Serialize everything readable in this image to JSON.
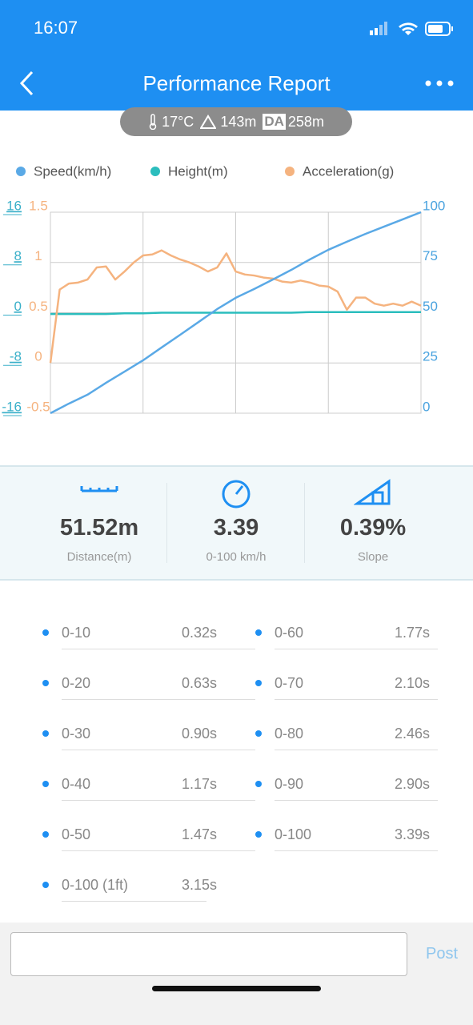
{
  "status_bar": {
    "time": "16:07"
  },
  "header": {
    "title": "Performance Report"
  },
  "conditions": {
    "temperature": "17°C",
    "altitude": "143m",
    "da_label": "DA",
    "density_altitude": "258m"
  },
  "chart_data": {
    "type": "line",
    "series": [
      {
        "name": "Speed(km/h)",
        "color": "#5aa9e6",
        "axis": "y3",
        "values": [
          0,
          4.8,
          9.2,
          15.1,
          20.7,
          26.3,
          32.7,
          39.0,
          45.4,
          51.8,
          57.4,
          61.8,
          66.5,
          71.3,
          76.5,
          81.3,
          85.3,
          89.2,
          92.8,
          96.4,
          100
        ]
      },
      {
        "name": "Height(m)",
        "color": "#2bbdbd",
        "axis": "y",
        "values": [
          -0.2,
          -0.2,
          -0.2,
          -0.2,
          -0.1,
          -0.1,
          0,
          0,
          0,
          0,
          0,
          0,
          0,
          0,
          0.1,
          0.1,
          0.1,
          0.1,
          0.1,
          0.1,
          0.1
        ]
      },
      {
        "name": "Acceleration(g)",
        "color": "#f5b37f",
        "axis": "y2",
        "values": [
          0.0,
          0.73,
          0.79,
          0.8,
          0.83,
          0.95,
          0.96,
          0.83,
          0.91,
          1.0,
          1.07,
          1.08,
          1.12,
          1.07,
          1.03,
          1.0,
          0.96,
          0.91,
          0.95,
          1.09,
          0.91,
          0.88,
          0.87,
          0.85,
          0.84,
          0.81,
          0.8,
          0.82,
          0.8,
          0.77,
          0.76,
          0.71,
          0.53,
          0.65,
          0.65,
          0.59,
          0.57,
          0.59,
          0.57,
          0.61,
          0.57
        ]
      }
    ],
    "ylim": [
      -16,
      16
    ],
    "yticks": [
      16,
      8,
      0,
      -8,
      -16
    ],
    "y_color": "#3bb0c9",
    "y2lim": [
      -0.5,
      1.5
    ],
    "y2ticks": [
      1.5,
      1,
      0.5,
      0,
      -0.5
    ],
    "y2_color": "#f5b37f",
    "y3lim": [
      0,
      100
    ],
    "y3ticks": [
      100,
      75,
      50,
      25,
      0
    ],
    "y3_color": "#4aa3df",
    "grid": true
  },
  "stats": [
    {
      "value": "51.52m",
      "label": "Distance(m)"
    },
    {
      "value": "3.39",
      "label": "0-100 km/h"
    },
    {
      "value": "0.39%",
      "label": "Slope"
    }
  ],
  "splits_left": [
    {
      "range": "0-10",
      "time": "0.32s"
    },
    {
      "range": "0-20",
      "time": "0.63s"
    },
    {
      "range": "0-30",
      "time": "0.90s"
    },
    {
      "range": "0-40",
      "time": "1.17s"
    },
    {
      "range": "0-50",
      "time": "1.47s"
    },
    {
      "range": "0-100 (1ft)",
      "time": "3.15s"
    }
  ],
  "splits_right": [
    {
      "range": "0-60",
      "time": "1.77s"
    },
    {
      "range": "0-70",
      "time": "2.10s"
    },
    {
      "range": "0-80",
      "time": "2.46s"
    },
    {
      "range": "0-90",
      "time": "2.90s"
    },
    {
      "range": "0-100",
      "time": "3.39s"
    }
  ],
  "comment": {
    "button": "Post"
  }
}
